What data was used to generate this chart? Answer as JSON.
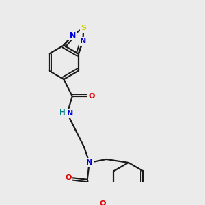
{
  "background_color": "#ebebeb",
  "bond_color": "#1a1a1a",
  "atom_colors": {
    "N": "#0000dd",
    "O": "#dd0000",
    "S": "#cccc00",
    "H": "#008080",
    "C": "#1a1a1a"
  },
  "figsize": [
    3.0,
    3.0
  ],
  "dpi": 100
}
